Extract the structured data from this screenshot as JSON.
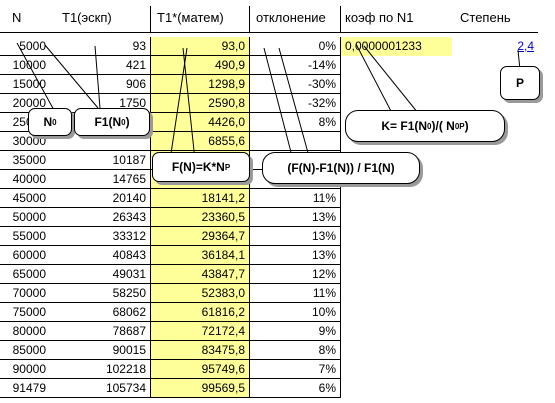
{
  "headers": {
    "n": "N",
    "t1_exp": "T1(эскп)",
    "t1_math": "T1*(матем)",
    "deviation": "отклонение",
    "coef": "коэф по N1",
    "power": "Степень"
  },
  "coef_value": "0,0000001233",
  "power_value": "2,4",
  "rows": [
    {
      "n": "5000",
      "t1": "93",
      "t1m": "93,0",
      "dev": "0%"
    },
    {
      "n": "10000",
      "t1": "421",
      "t1m": "490,9",
      "dev": "-14%"
    },
    {
      "n": "15000",
      "t1": "906",
      "t1m": "1298,9",
      "dev": "-30%"
    },
    {
      "n": "20000",
      "t1": "1750",
      "t1m": "2590,8",
      "dev": "-32%"
    },
    {
      "n": "25000",
      "t1": "",
      "t1m": "4426,0",
      "dev": "8%"
    },
    {
      "n": "30000",
      "t1": "",
      "t1m": "6855,6",
      "dev": ""
    },
    {
      "n": "35000",
      "t1": "10187",
      "t1m": "",
      "dev": ""
    },
    {
      "n": "40000",
      "t1": "14765",
      "t1m": "",
      "dev": ""
    },
    {
      "n": "45000",
      "t1": "20140",
      "t1m": "18141,2",
      "dev": "11%"
    },
    {
      "n": "50000",
      "t1": "26343",
      "t1m": "23360,5",
      "dev": "13%"
    },
    {
      "n": "55000",
      "t1": "33312",
      "t1m": "29364,7",
      "dev": "13%"
    },
    {
      "n": "60000",
      "t1": "40843",
      "t1m": "36184,1",
      "dev": "13%"
    },
    {
      "n": "65000",
      "t1": "49031",
      "t1m": "43847,7",
      "dev": "12%"
    },
    {
      "n": "70000",
      "t1": "58250",
      "t1m": "52383,0",
      "dev": "11%"
    },
    {
      "n": "75000",
      "t1": "68062",
      "t1m": "61816,2",
      "dev": "10%"
    },
    {
      "n": "80000",
      "t1": "78687",
      "t1m": "72172,4",
      "dev": "9%"
    },
    {
      "n": "85000",
      "t1": "90015",
      "t1m": "83475,8",
      "dev": "8%"
    },
    {
      "n": "90000",
      "t1": "102218",
      "t1m": "95749,6",
      "dev": "7%"
    },
    {
      "n": "91479",
      "t1": "105734",
      "t1m": "99569,5",
      "dev": "6%"
    }
  ],
  "callouts": {
    "n0": {
      "main": "N",
      "sub": "0"
    },
    "f1n0": {
      "pre": "F1(N",
      "sub": "0",
      "post": ")"
    },
    "fn": {
      "pre": "F(N)=K*N",
      "sup": "P"
    },
    "dev": {
      "text": "(F(N)-F1(N)) / F1(N)"
    },
    "k": {
      "pre": "K= F1(N",
      "sub1": "0",
      "mid": ")/( N",
      "sub2": "0",
      "sup": "P",
      "post": ")"
    },
    "p": {
      "text": "P"
    }
  }
}
